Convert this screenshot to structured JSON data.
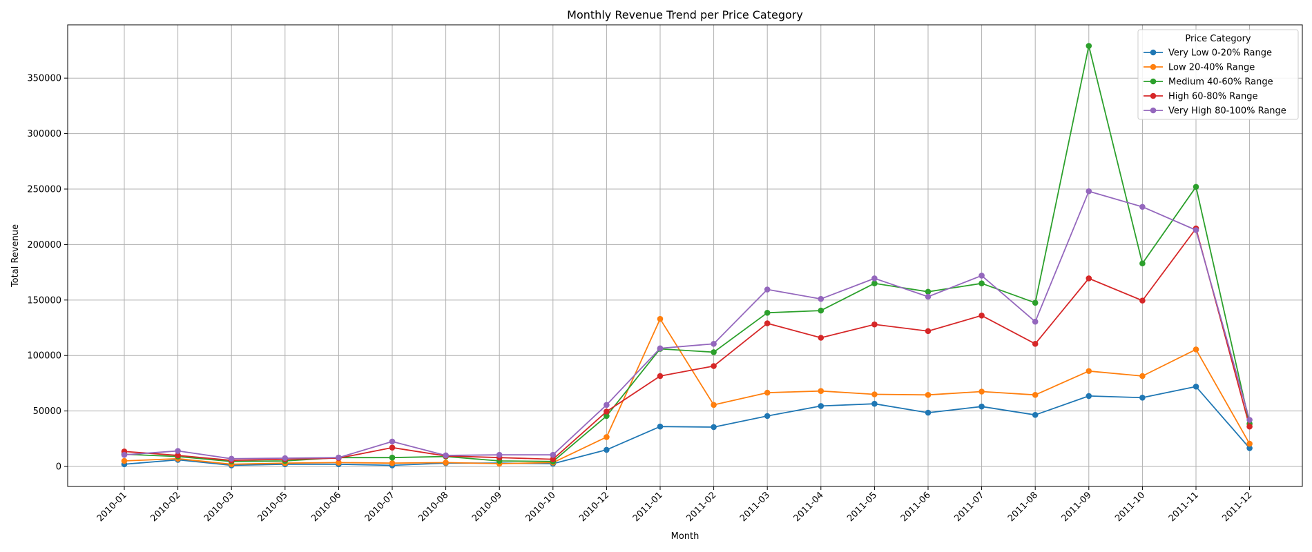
{
  "chart_data": {
    "type": "line",
    "title": "Monthly Revenue Trend per Price Category",
    "xlabel": "Month",
    "ylabel": "Total Revenue",
    "categories": [
      "2010-01",
      "2010-02",
      "2010-03",
      "2010-05",
      "2010-06",
      "2010-07",
      "2010-08",
      "2010-09",
      "2010-10",
      "2010-12",
      "2011-01",
      "2011-02",
      "2011-03",
      "2011-04",
      "2011-05",
      "2011-06",
      "2011-07",
      "2011-08",
      "2011-09",
      "2011-10",
      "2011-11",
      "2011-12"
    ],
    "yticks": [
      0,
      50000,
      100000,
      150000,
      200000,
      250000,
      300000,
      350000
    ],
    "ylim": [
      -18000,
      398000
    ],
    "grid": true,
    "legend": {
      "title": "Price Category",
      "placement": "top-right"
    },
    "series": [
      {
        "name": "Very Low 0-20% Range",
        "color": "#1f77b4",
        "values": [
          2000,
          6000,
          1000,
          2000,
          2000,
          1000,
          3000,
          3000,
          2500,
          15000,
          36000,
          35500,
          45500,
          54500,
          56500,
          48500,
          54000,
          46500,
          63500,
          62000,
          72000,
          16500
        ]
      },
      {
        "name": "Low 20-40% Range",
        "color": "#ff7f0e",
        "values": [
          5000,
          7000,
          2000,
          3000,
          3500,
          3000,
          3500,
          2500,
          3500,
          26500,
          133000,
          55500,
          66500,
          68000,
          65000,
          64500,
          67500,
          64500,
          86000,
          81500,
          105500,
          20500
        ]
      },
      {
        "name": "Medium 40-60% Range",
        "color": "#2ca02c",
        "values": [
          11000,
          9000,
          4500,
          5000,
          8000,
          8000,
          9000,
          5000,
          4500,
          45500,
          106000,
          103000,
          138500,
          140500,
          165000,
          157500,
          165000,
          147500,
          379000,
          183000,
          252000,
          38500
        ]
      },
      {
        "name": "High 60-80% Range",
        "color": "#d62728",
        "values": [
          13500,
          10000,
          5500,
          6500,
          7500,
          17000,
          9500,
          8000,
          6500,
          49500,
          81500,
          90500,
          129000,
          116000,
          128000,
          122000,
          136000,
          110500,
          169500,
          149500,
          214500,
          36000
        ]
      },
      {
        "name": "Very High 80-100% Range",
        "color": "#9467bd",
        "values": [
          10500,
          14000,
          7000,
          7500,
          8000,
          22500,
          10000,
          10500,
          10500,
          55500,
          106500,
          110500,
          159500,
          151000,
          169500,
          153000,
          172000,
          130500,
          248000,
          234000,
          213000,
          42000
        ]
      }
    ]
  }
}
